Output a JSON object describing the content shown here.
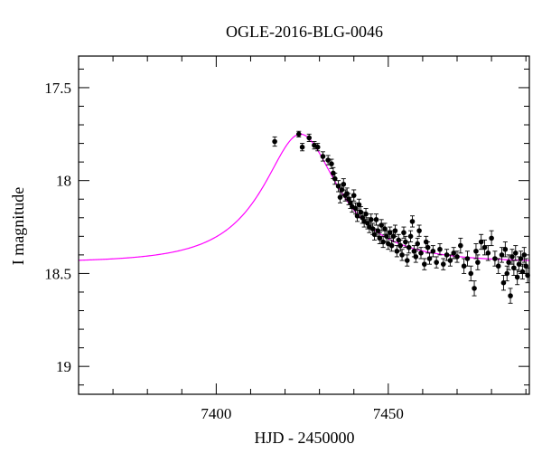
{
  "chart_data": {
    "type": "scatter",
    "title": "OGLE-2016-BLG-0046",
    "xlabel": "HJD - 2450000",
    "ylabel": "I magnitude",
    "xlim": [
      7360,
      7491
    ],
    "ylim": [
      19.15,
      17.33
    ],
    "y_inverted": true,
    "x_ticks": [
      7400,
      7450
    ],
    "y_ticks": [
      17.5,
      18,
      18.5,
      19
    ],
    "y_tick_labels": [
      "17.5",
      "18",
      "18.5",
      "19"
    ],
    "x_tick_labels": [
      "7400",
      "7450"
    ],
    "grid": false,
    "colors": {
      "data": "#000000",
      "model": "#ff00ff"
    },
    "series": [
      {
        "kind": "data-with-errorbars",
        "points": [
          [
            7417.0,
            17.79,
            0.025
          ],
          [
            7424.0,
            17.75,
            0.015
          ],
          [
            7425.0,
            17.82,
            0.02
          ],
          [
            7427.0,
            17.77,
            0.02
          ],
          [
            7428.5,
            17.81,
            0.02
          ],
          [
            7429.5,
            17.82,
            0.02
          ],
          [
            7431.0,
            17.87,
            0.025
          ],
          [
            7432.5,
            17.89,
            0.025
          ],
          [
            7433.5,
            17.91,
            0.025
          ],
          [
            7434.0,
            17.96,
            0.03
          ],
          [
            7434.5,
            17.99,
            0.03
          ],
          [
            7435.5,
            18.03,
            0.03
          ],
          [
            7436.5,
            18.05,
            0.03
          ],
          [
            7436.0,
            18.09,
            0.03
          ],
          [
            7437.0,
            18.02,
            0.03
          ],
          [
            7437.5,
            18.08,
            0.03
          ],
          [
            7438.0,
            18.07,
            0.03
          ],
          [
            7438.5,
            18.1,
            0.03
          ],
          [
            7439.0,
            18.12,
            0.03
          ],
          [
            7439.5,
            18.14,
            0.03
          ],
          [
            7440.0,
            18.08,
            0.03
          ],
          [
            7440.5,
            18.15,
            0.03
          ],
          [
            7441.0,
            18.19,
            0.03
          ],
          [
            7441.5,
            18.13,
            0.03
          ],
          [
            7442.0,
            18.17,
            0.03
          ],
          [
            7442.5,
            18.2,
            0.03
          ],
          [
            7443.0,
            18.22,
            0.03
          ],
          [
            7443.5,
            18.18,
            0.03
          ],
          [
            7444.0,
            18.23,
            0.03
          ],
          [
            7444.5,
            18.25,
            0.03
          ],
          [
            7445.0,
            18.21,
            0.03
          ],
          [
            7445.5,
            18.26,
            0.03
          ],
          [
            7446.0,
            18.29,
            0.03
          ],
          [
            7446.5,
            18.21,
            0.03
          ],
          [
            7447.0,
            18.27,
            0.03
          ],
          [
            7447.5,
            18.31,
            0.03
          ],
          [
            7448.0,
            18.24,
            0.03
          ],
          [
            7448.5,
            18.33,
            0.03
          ],
          [
            7449.0,
            18.26,
            0.03
          ],
          [
            7449.5,
            18.3,
            0.03
          ],
          [
            7450.0,
            18.34,
            0.03
          ],
          [
            7450.5,
            18.28,
            0.03
          ],
          [
            7451.0,
            18.35,
            0.03
          ],
          [
            7451.5,
            18.3,
            0.03
          ],
          [
            7452.0,
            18.27,
            0.03
          ],
          [
            7452.5,
            18.38,
            0.03
          ],
          [
            7453.0,
            18.32,
            0.03
          ],
          [
            7453.5,
            18.35,
            0.03
          ],
          [
            7454.0,
            18.4,
            0.03
          ],
          [
            7454.5,
            18.28,
            0.03
          ],
          [
            7455.0,
            18.33,
            0.03
          ],
          [
            7455.5,
            18.43,
            0.03
          ],
          [
            7456.0,
            18.36,
            0.03
          ],
          [
            7456.5,
            18.3,
            0.03
          ],
          [
            7457.0,
            18.22,
            0.03
          ],
          [
            7457.5,
            18.38,
            0.03
          ],
          [
            7458.0,
            18.41,
            0.03
          ],
          [
            7458.5,
            18.34,
            0.03
          ],
          [
            7459.0,
            18.27,
            0.03
          ],
          [
            7459.5,
            18.39,
            0.03
          ],
          [
            7460.5,
            18.45,
            0.03
          ],
          [
            7461.0,
            18.33,
            0.03
          ],
          [
            7461.5,
            18.36,
            0.03
          ],
          [
            7462.0,
            18.42,
            0.03
          ],
          [
            7463.0,
            18.38,
            0.03
          ],
          [
            7464.0,
            18.44,
            0.03
          ],
          [
            7465.0,
            18.37,
            0.03
          ],
          [
            7466.0,
            18.45,
            0.03
          ],
          [
            7467.0,
            18.4,
            0.03
          ],
          [
            7468.0,
            18.43,
            0.03
          ],
          [
            7469.0,
            18.39,
            0.03
          ],
          [
            7470.0,
            18.41,
            0.03
          ],
          [
            7471.0,
            18.35,
            0.04
          ],
          [
            7472.0,
            18.46,
            0.04
          ],
          [
            7473.0,
            18.42,
            0.04
          ],
          [
            7474.0,
            18.5,
            0.04
          ],
          [
            7475.0,
            18.58,
            0.04
          ],
          [
            7475.5,
            18.38,
            0.04
          ],
          [
            7476.0,
            18.44,
            0.04
          ],
          [
            7477.0,
            18.33,
            0.04
          ],
          [
            7478.0,
            18.36,
            0.04
          ],
          [
            7479.0,
            18.39,
            0.04
          ],
          [
            7480.0,
            18.31,
            0.04
          ],
          [
            7481.0,
            18.42,
            0.04
          ],
          [
            7482.0,
            18.46,
            0.04
          ],
          [
            7483.0,
            18.4,
            0.04
          ],
          [
            7483.5,
            18.55,
            0.04
          ],
          [
            7484.0,
            18.37,
            0.04
          ],
          [
            7484.5,
            18.5,
            0.04
          ],
          [
            7485.0,
            18.44,
            0.04
          ],
          [
            7485.5,
            18.62,
            0.04
          ],
          [
            7486.0,
            18.41,
            0.04
          ],
          [
            7486.5,
            18.47,
            0.04
          ],
          [
            7487.0,
            18.39,
            0.04
          ],
          [
            7487.5,
            18.52,
            0.04
          ],
          [
            7488.0,
            18.45,
            0.04
          ],
          [
            7488.5,
            18.42,
            0.04
          ],
          [
            7489.0,
            18.49,
            0.04
          ],
          [
            7489.5,
            18.4,
            0.04
          ],
          [
            7490.0,
            18.46,
            0.04
          ],
          [
            7490.5,
            18.51,
            0.04
          ]
        ]
      },
      {
        "kind": "model-curve",
        "baseline": 18.44,
        "peak": 17.75,
        "t0": 7424.5,
        "tE": 22.0,
        "u0": 0.53
      }
    ]
  }
}
